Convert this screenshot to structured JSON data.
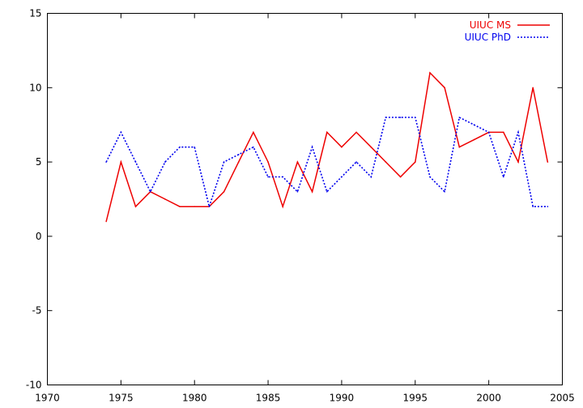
{
  "chart_data": {
    "type": "line",
    "title": "",
    "xlabel": "",
    "ylabel": "",
    "xlim": [
      1970,
      2005
    ],
    "ylim": [
      -10,
      15
    ],
    "xticks": [
      1970,
      1975,
      1980,
      1985,
      1990,
      1995,
      2000,
      2005
    ],
    "yticks": [
      -10,
      -5,
      0,
      5,
      10,
      15
    ],
    "grid": false,
    "legend_position": "top-right",
    "series": [
      {
        "name": "UIUC MS",
        "color": "#ee0000",
        "style": "solid",
        "x": [
          1974,
          1975,
          1976,
          1977,
          1978,
          1979,
          1980,
          1981,
          1982,
          1983,
          1984,
          1985,
          1986,
          1987,
          1988,
          1989,
          1990,
          1991,
          1992,
          1993,
          1994,
          1995,
          1996,
          1997,
          1998,
          1999,
          2000,
          2001,
          2002,
          2003,
          2004
        ],
        "values": [
          1,
          5,
          2,
          3,
          2.5,
          2,
          2,
          2,
          3,
          5,
          7,
          5,
          2,
          5,
          3,
          7,
          6,
          7,
          6,
          5,
          4,
          5,
          11,
          10,
          6,
          6.5,
          7,
          7,
          5,
          10,
          5
        ]
      },
      {
        "name": "UIUC PhD",
        "color": "#0000ee",
        "style": "dotted",
        "x": [
          1974,
          1975,
          1976,
          1977,
          1978,
          1979,
          1980,
          1981,
          1982,
          1983,
          1984,
          1985,
          1986,
          1987,
          1988,
          1989,
          1990,
          1991,
          1992,
          1993,
          1994,
          1995,
          1996,
          1997,
          1998,
          1999,
          2000,
          2001,
          2002,
          2003,
          2004
        ],
        "values": [
          5,
          7,
          5,
          3,
          5,
          6,
          6,
          2,
          5,
          5.5,
          6,
          4,
          4,
          3,
          6,
          3,
          4,
          5,
          4,
          8,
          8,
          8,
          4,
          3,
          8,
          7.5,
          7,
          4,
          7,
          2,
          2
        ]
      }
    ]
  }
}
